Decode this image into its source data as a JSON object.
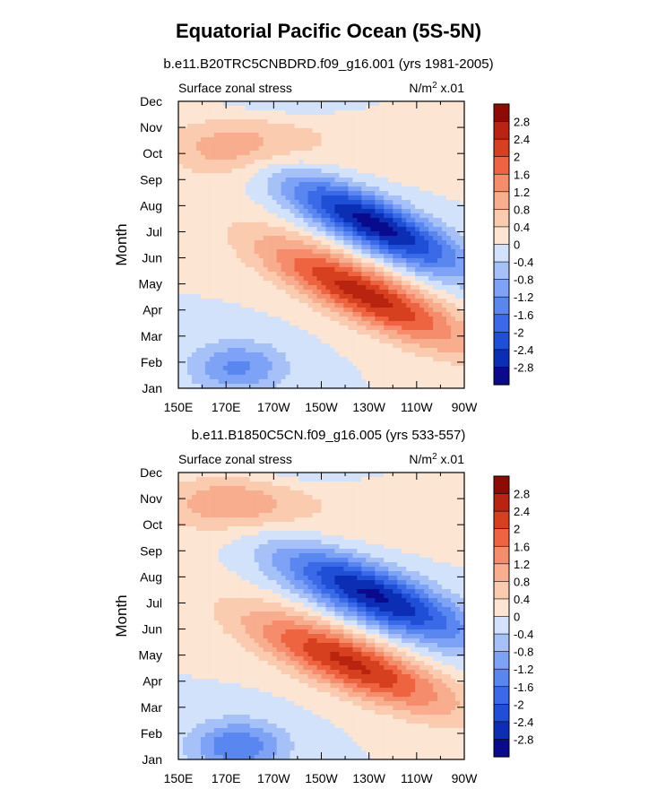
{
  "figure": {
    "title": "Equatorial Pacific Ocean (5S-5N)"
  },
  "chart_data": [
    {
      "type": "heatmap",
      "subtitle": "b.e11.B20TRC5CNBDRD.f09_g16.001 (yrs 1981-2005)",
      "left_label": "Surface zonal stress",
      "units_prefix": "N/m",
      "units_sup": "2",
      "units_suffix": " x.01",
      "ylabel": "Month",
      "y_ticks": [
        "Jan",
        "Feb",
        "Mar",
        "Apr",
        "May",
        "Jun",
        "Jul",
        "Aug",
        "Sep",
        "Oct",
        "Nov",
        "Dec"
      ],
      "x_ticks": [
        "150E",
        "170E",
        "170W",
        "150W",
        "130W",
        "110W",
        "90W"
      ],
      "x_range": [
        150,
        270
      ],
      "y_range": [
        1,
        12
      ],
      "colorbar_levels": [
        "-2.8",
        "-2.4",
        "-2",
        "-1.6",
        "-1.2",
        "-0.8",
        "-0.4",
        "0",
        "0.4",
        "0.8",
        "1.2",
        "1.6",
        "2",
        "2.4",
        "2.8"
      ],
      "features": {
        "neg_lon": 232,
        "neg_month": 7.3,
        "neg_lon_width": 26,
        "neg_month_width": 0.75,
        "neg_amp": -3.0,
        "pos_lon": 228,
        "pos_month": 4.6,
        "pos_lon_width": 30,
        "pos_month_width": 0.8,
        "pos_amp": 2.6,
        "west_oct_lon": 172,
        "west_oct_month": 10.2,
        "west_oct_amp": 0.9,
        "jan_neg_lon": 175,
        "jan_neg_month": 1.8,
        "jan_neg_amp": -1.3,
        "dec_neg_lon": 200,
        "dec_neg_month": 12.1,
        "dec_neg_amp": -0.6,
        "slope": 0.04
      }
    },
    {
      "type": "heatmap",
      "subtitle": "b.e11.B1850C5CN.f09_g16.005 (yrs 533-557)",
      "left_label": "Surface zonal stress",
      "units_prefix": "N/m",
      "units_sup": "2",
      "units_suffix": " x.01",
      "ylabel": "Month",
      "y_ticks": [
        "Jan",
        "Feb",
        "Mar",
        "Apr",
        "May",
        "Jun",
        "Jul",
        "Aug",
        "Sep",
        "Oct",
        "Nov",
        "Dec"
      ],
      "x_ticks": [
        "150E",
        "170E",
        "170W",
        "150W",
        "130W",
        "110W",
        "90W"
      ],
      "x_range": [
        150,
        270
      ],
      "y_range": [
        1,
        12
      ],
      "colorbar_levels": [
        "-2.8",
        "-2.4",
        "-2",
        "-1.6",
        "-1.2",
        "-0.8",
        "-0.4",
        "0",
        "0.4",
        "0.8",
        "1.2",
        "1.6",
        "2",
        "2.4",
        "2.8"
      ],
      "features": {
        "neg_lon": 232,
        "neg_month": 7.3,
        "neg_lon_width": 28,
        "neg_month_width": 0.8,
        "neg_amp": -2.9,
        "pos_lon": 222,
        "pos_month": 4.7,
        "pos_lon_width": 30,
        "pos_month_width": 0.8,
        "pos_amp": 2.5,
        "west_oct_lon": 170,
        "west_oct_month": 10.8,
        "west_oct_amp": 1.0,
        "jan_neg_lon": 175,
        "jan_neg_month": 1.5,
        "jan_neg_amp": -1.6,
        "dec_neg_lon": 205,
        "dec_neg_month": 12.2,
        "dec_neg_amp": -0.5,
        "slope": 0.035
      }
    }
  ],
  "colors": {
    "levels": [
      "#0a0a8c",
      "#0c2eb4",
      "#1f4fd6",
      "#3a6ae8",
      "#5a86f0",
      "#7ea2f6",
      "#a6c0f8",
      "#d2e2fb",
      "#fde5d3",
      "#fbcbb0",
      "#f8ad8e",
      "#f58c6b",
      "#ee6440",
      "#d6401f",
      "#b8240f",
      "#8c0c05"
    ]
  }
}
